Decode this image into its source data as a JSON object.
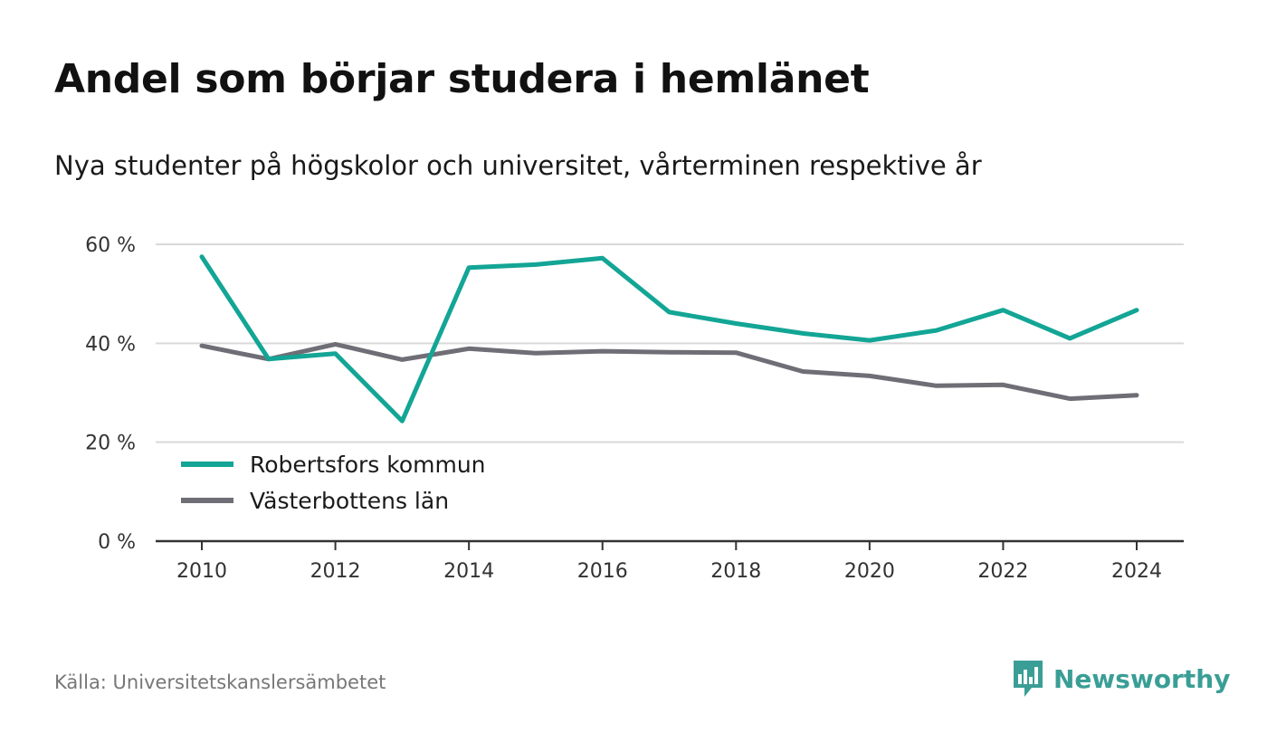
{
  "header": {
    "title": "Andel som börjar studera i hemlänet",
    "subtitle": "Nya studenter på högskolor och universitet, vårterminen respektive år"
  },
  "footer": {
    "source": "Källa: Universitetskanslersämbetet",
    "brand": "Newsworthy",
    "brand_icon": "newsworthy-logo-icon"
  },
  "colors": {
    "robertsfors": "#13a595",
    "vasterbotten": "#6f6e76",
    "brand": "#3a9e96",
    "grid": "#d9d9d9",
    "axis": "#333333"
  },
  "chart_data": {
    "type": "line",
    "title": "Andel som börjar studera i hemlänet",
    "subtitle": "Nya studenter på högskolor och universitet, vårterminen respektive år",
    "x": [
      2010,
      2011,
      2012,
      2013,
      2014,
      2015,
      2016,
      2017,
      2018,
      2019,
      2020,
      2021,
      2022,
      2023,
      2024
    ],
    "x_ticks": [
      2010,
      2012,
      2014,
      2016,
      2018,
      2020,
      2022,
      2024
    ],
    "x_tick_labels": [
      "2010",
      "2012",
      "2014",
      "2016",
      "2018",
      "2020",
      "2022",
      "2024"
    ],
    "y_ticks": [
      0,
      20,
      40,
      60
    ],
    "y_tick_labels": [
      "0 %",
      "20 %",
      "40 %",
      "60 %"
    ],
    "xlim": [
      2009.3,
      2024.7
    ],
    "ylim": [
      0,
      60
    ],
    "grid": true,
    "legend_position": "bottom-left",
    "series": [
      {
        "name": "Robertsfors kommun",
        "color": "#13a595",
        "values": [
          57.5,
          36.8,
          37.9,
          24.3,
          55.3,
          55.9,
          57.2,
          46.3,
          44.0,
          42.0,
          40.6,
          42.6,
          46.7,
          41.0,
          46.7
        ]
      },
      {
        "name": "Västerbottens län",
        "color": "#6f6e76",
        "values": [
          39.5,
          36.8,
          39.8,
          36.7,
          38.9,
          38.0,
          38.4,
          38.2,
          38.1,
          34.3,
          33.4,
          31.4,
          31.6,
          28.8,
          29.5
        ]
      }
    ]
  }
}
